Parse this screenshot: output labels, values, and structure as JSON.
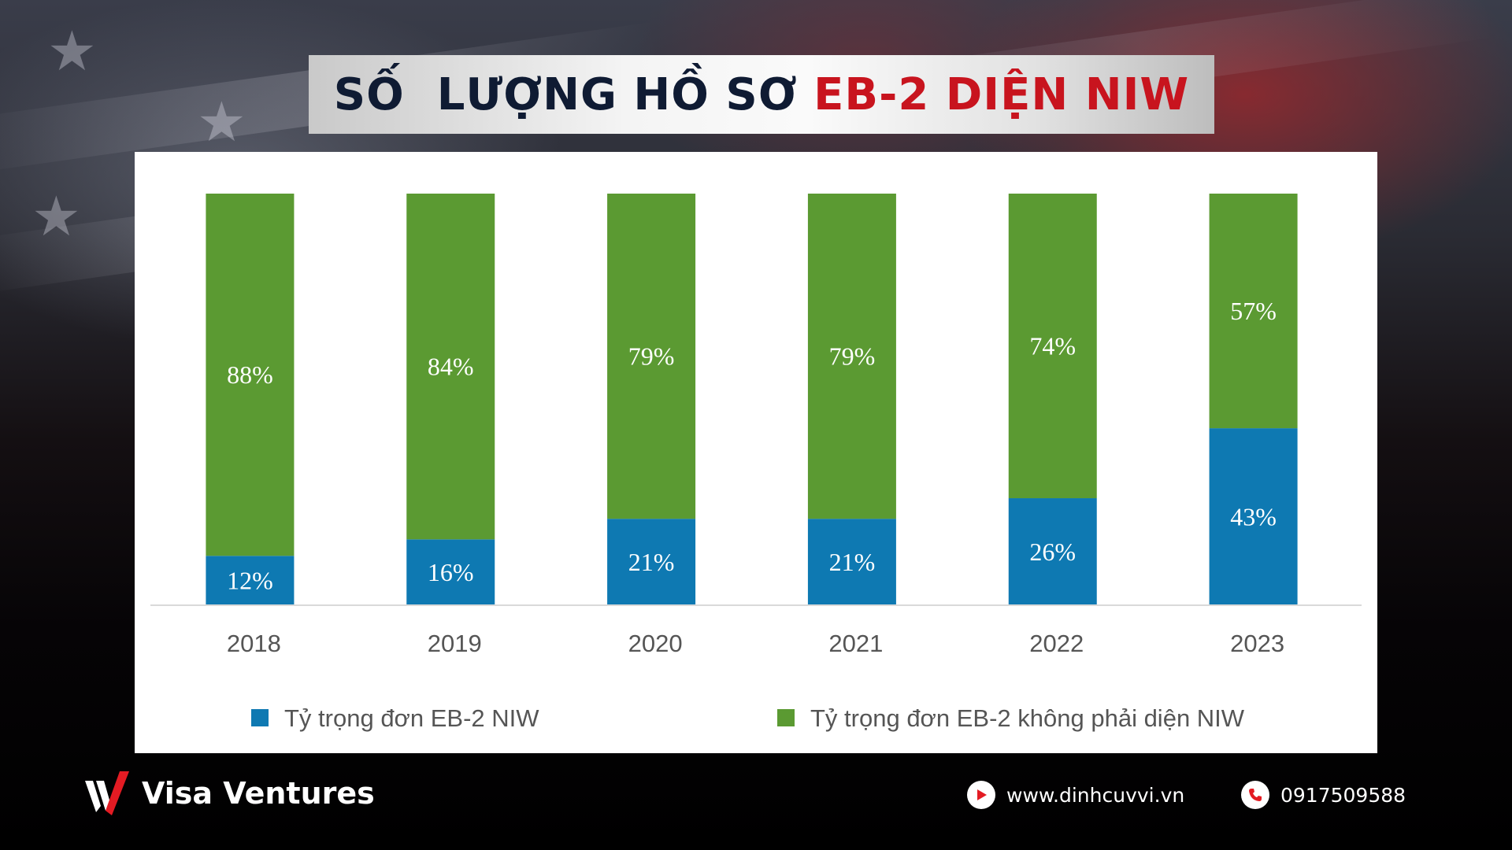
{
  "header": {
    "title_part1": "SỐ  LƯỢNG HỒ SƠ ",
    "title_part2": "EB-2 DIỆN NIW"
  },
  "chart_data": {
    "type": "bar",
    "stacked": true,
    "title": "SỐ  LƯỢNG HỒ SƠ EB-2 DIỆN NIW",
    "categories": [
      "2018",
      "2019",
      "2020",
      "2021",
      "2022",
      "2023"
    ],
    "series": [
      {
        "name": "Tỷ trọng đơn EB-2 NIW",
        "color": "#0e79b2",
        "values": [
          12,
          16,
          21,
          21,
          26,
          43
        ],
        "labels": [
          "12%",
          "16%",
          "21%",
          "21%",
          "26%",
          "43%"
        ]
      },
      {
        "name": "Tỷ trọng đơn EB-2 không phải diện NIW",
        "color": "#5b9a32",
        "values": [
          88,
          84,
          79,
          79,
          74,
          57
        ],
        "labels": [
          "88%",
          "84%",
          "79%",
          "79%",
          "74%",
          "57%"
        ]
      }
    ],
    "ylim": [
      0,
      100
    ],
    "xlabel": "",
    "ylabel": "",
    "legend_position": "bottom",
    "grid": false
  },
  "footer": {
    "brand": "Visa Ventures",
    "website": "www.dinhcuvvi.vn",
    "phone": "0917509588",
    "icons": {
      "logo": "visa-ventures-logo",
      "website": "play-icon",
      "phone": "phone-icon"
    },
    "colors": {
      "accent": "#e31b23"
    }
  }
}
